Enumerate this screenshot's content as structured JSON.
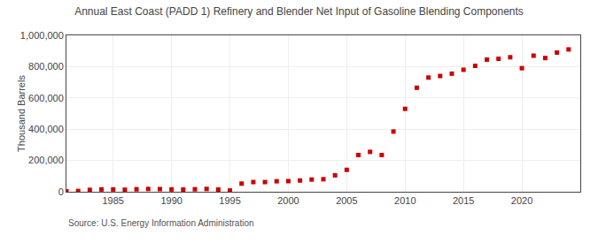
{
  "chart_data": {
    "type": "scatter",
    "title": "Annual East Coast (PADD 1) Refinery and Blender Net Input of Gasoline Blending Components",
    "ylabel": "Thousand Barrels",
    "annotations": [
      "Source: U.S. Energy Information Administration"
    ],
    "x": [
      1981,
      1982,
      1983,
      1984,
      1985,
      1986,
      1987,
      1988,
      1989,
      1990,
      1991,
      1992,
      1993,
      1994,
      1995,
      1996,
      1997,
      1998,
      1999,
      2000,
      2001,
      2002,
      2003,
      2004,
      2005,
      2006,
      2007,
      2008,
      2009,
      2010,
      2011,
      2012,
      2013,
      2014,
      2015,
      2016,
      2017,
      2018,
      2019,
      2020,
      2021,
      2022,
      2023,
      2024
    ],
    "values": [
      3000,
      5000,
      12000,
      15000,
      15000,
      13000,
      16000,
      18000,
      17000,
      15000,
      14000,
      16000,
      18000,
      14000,
      8000,
      52000,
      62000,
      62000,
      67000,
      68000,
      72000,
      78000,
      80000,
      105000,
      140000,
      235000,
      255000,
      235000,
      385000,
      530000,
      665000,
      730000,
      740000,
      755000,
      780000,
      805000,
      845000,
      850000,
      860000,
      790000,
      870000,
      855000,
      890000,
      910000
    ],
    "color": "#cc0000",
    "marker": "square",
    "xlim": [
      1981,
      2025
    ],
    "ylim": [
      0,
      1000000
    ],
    "xticks": [
      1985,
      1990,
      1995,
      2000,
      2005,
      2010,
      2015,
      2020
    ],
    "yticks": [
      0,
      {
        "value": 200000,
        "label": "200,000"
      },
      {
        "value": 400000,
        "label": "400,000"
      },
      {
        "value": 600000,
        "label": "600,000"
      },
      {
        "value": 800000,
        "label": "800,000"
      },
      {
        "value": 1000000,
        "label": "1,000,000"
      }
    ],
    "grid": true
  }
}
